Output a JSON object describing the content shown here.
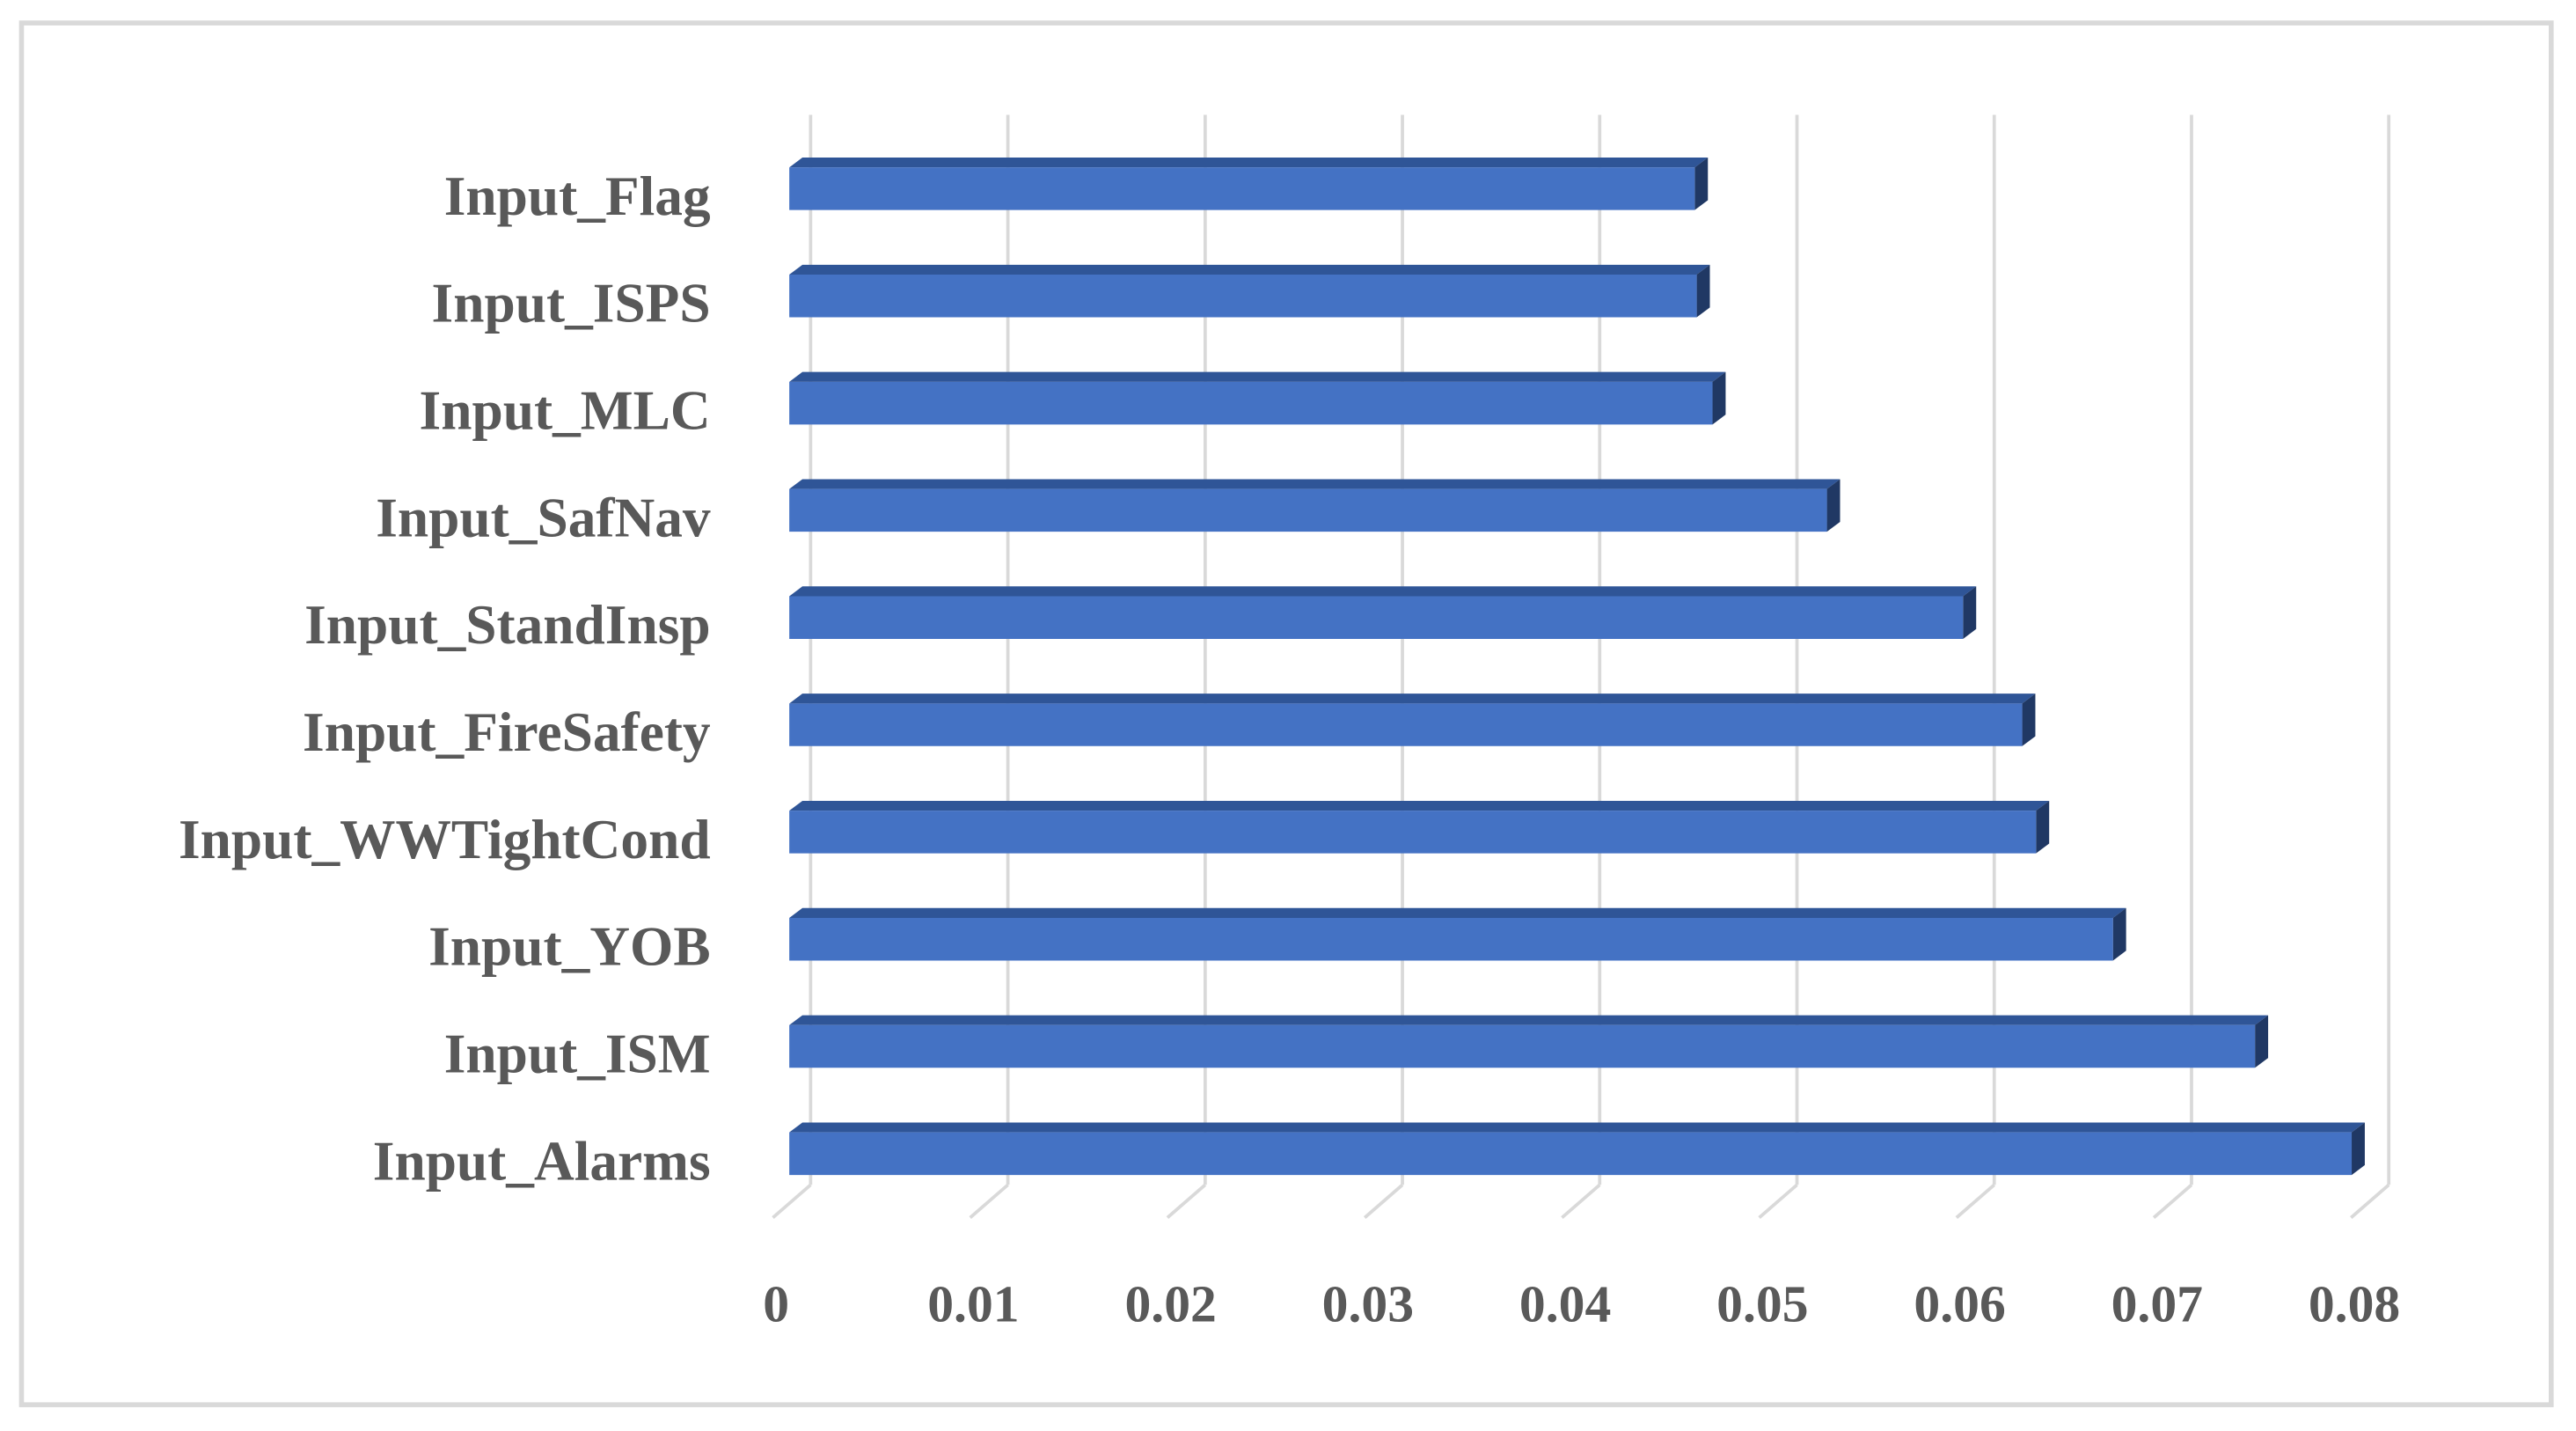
{
  "chart_data": {
    "type": "bar",
    "orientation": "horizontal",
    "style": "3d",
    "categories": [
      "Input_Flag",
      "Input_ISPS",
      "Input_MLC",
      "Input_SafNav",
      "Input_StandInsp",
      "Input_FireSafety",
      "Input_WWTightCond",
      "Input_YOB",
      "Input_ISM",
      "Input_Alarms"
    ],
    "values": [
      0.0459,
      0.046,
      0.0468,
      0.0526,
      0.0595,
      0.0625,
      0.0632,
      0.0671,
      0.0743,
      0.0792
    ],
    "color": "#4472c4",
    "xlim": [
      0,
      0.08
    ],
    "xticks": [
      0,
      0.01,
      0.02,
      0.03,
      0.04,
      0.05,
      0.06,
      0.07,
      0.08
    ],
    "grid": true
  }
}
